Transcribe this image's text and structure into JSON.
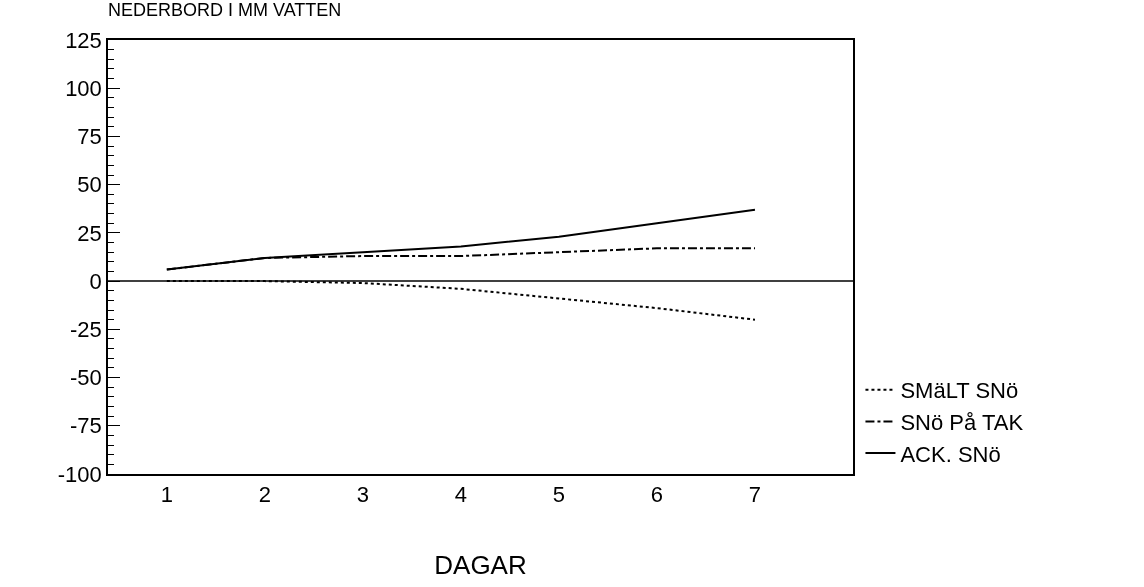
{
  "chart_data": {
    "type": "line",
    "title": "NEDERBORD I MM VATTEN",
    "xlabel": "DAGAR",
    "x": [
      1,
      2,
      3,
      4,
      5,
      6,
      7
    ],
    "series": [
      {
        "name": "SMäLT SNö",
        "color": "#000000",
        "line_style": "dotted",
        "values": [
          0,
          0,
          -1,
          -4,
          -9,
          -14,
          -20
        ]
      },
      {
        "name": "SNö På TAK",
        "color": "#000000",
        "line_style": "dashdot",
        "values": [
          6,
          12,
          13,
          13,
          15,
          17,
          17
        ]
      },
      {
        "name": "ACK. SNö",
        "color": "#000000",
        "line_style": "solid",
        "values": [
          6,
          12,
          15,
          18,
          23,
          30,
          37
        ]
      }
    ],
    "xlim": [
      0.4,
      8
    ],
    "xticks": [
      1,
      2,
      3,
      4,
      5,
      6,
      7
    ],
    "ylim": [
      -100,
      125
    ],
    "yticks": [
      -100,
      -75,
      -50,
      -25,
      0,
      25,
      50,
      75,
      100,
      125
    ],
    "ref_lines": [
      {
        "axis": "y",
        "value": 0,
        "color": "#000000"
      }
    ],
    "legend": "bottom right",
    "marker": "none"
  }
}
